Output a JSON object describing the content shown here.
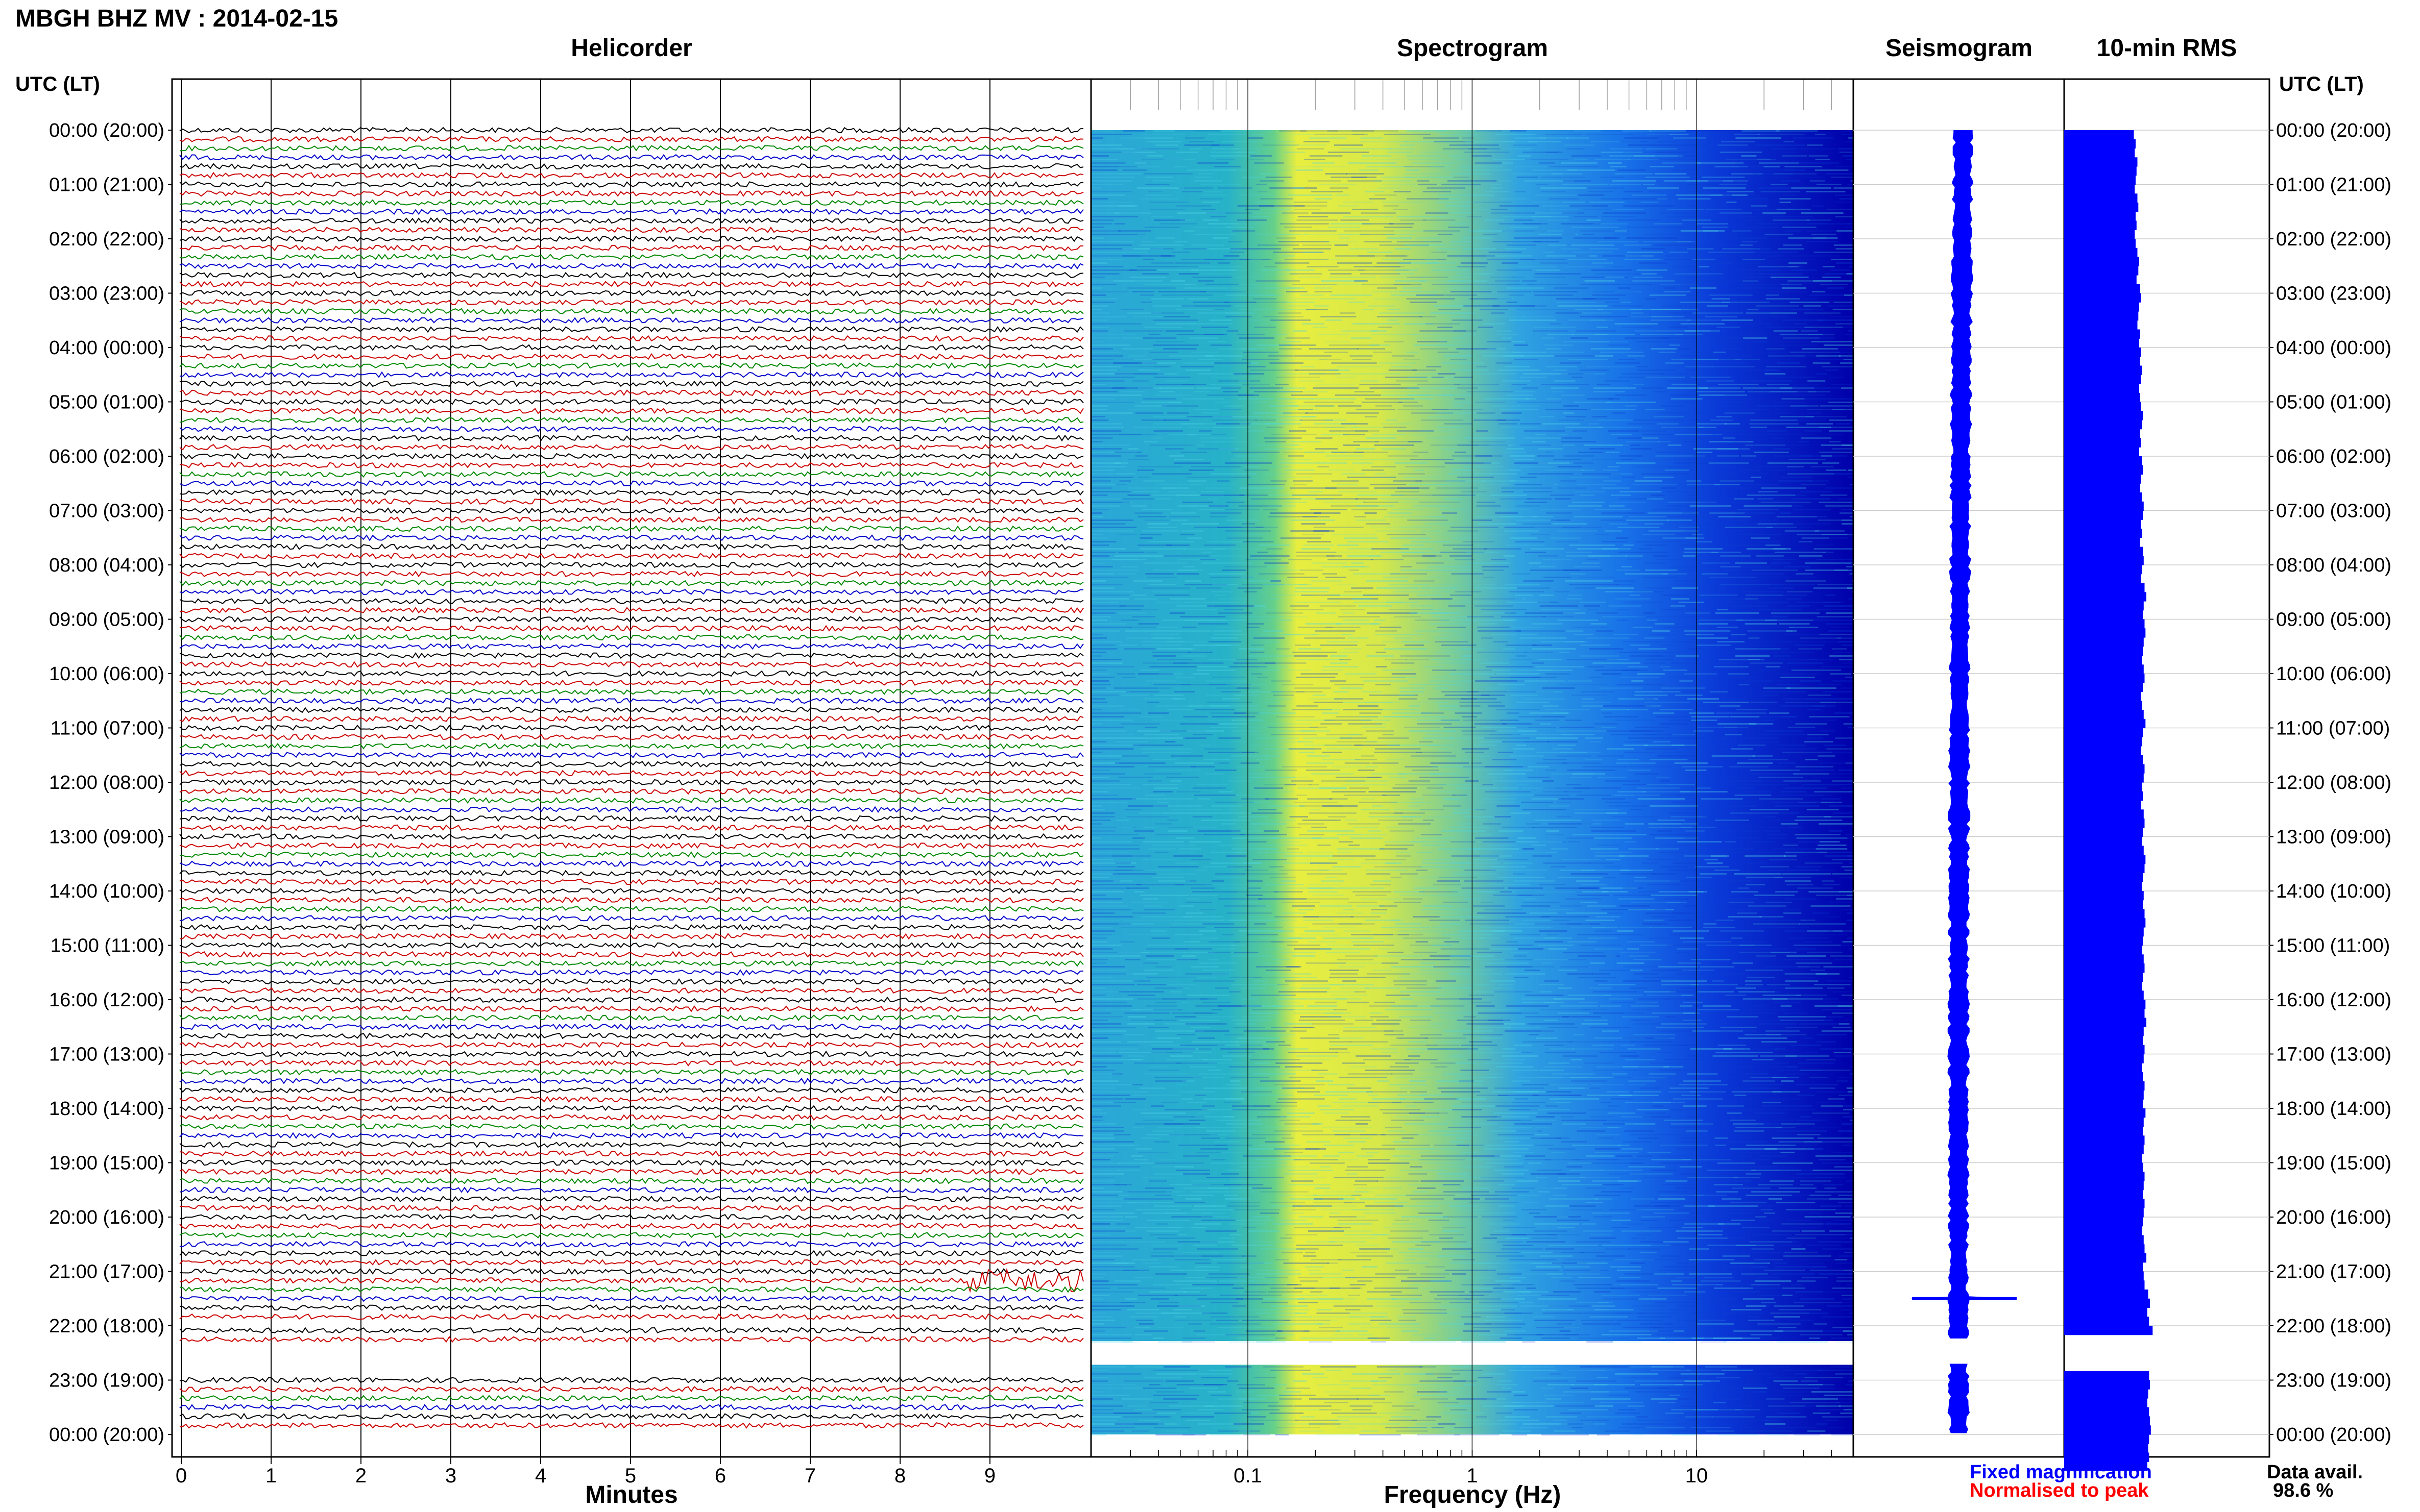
{
  "header": {
    "title": "MBGH BHZ MV : 2014-02-15",
    "left_axis_label": "UTC (LT)",
    "right_axis_label": "UTC (LT)"
  },
  "panels": {
    "helicorder": "Helicorder",
    "spectrogram": "Spectrogram",
    "seismogram": "Seismogram",
    "rms": "10-min RMS"
  },
  "legend": {
    "fixed": "Fixed magnification",
    "normalised": "Normalised to peak",
    "fixed_color": "#0000ff",
    "normalised_color": "#ff0000",
    "avail_label": "Data avail.",
    "avail_value": "98.6 %"
  },
  "colors": {
    "trace_cycle": [
      "#000000",
      "#cc0000",
      "#008800",
      "#0000cc"
    ],
    "spectrogram_low": "#2aa6d8",
    "spectrogram_mid": "#e8ee40",
    "spectrogram_high": "#0000aa",
    "rms_fill": "#0000ff"
  },
  "chart_data": [
    {
      "type": "line",
      "name": "helicorder",
      "title": "Helicorder",
      "xlabel": "Minutes",
      "x_ticks": [
        "0",
        "1",
        "2",
        "3",
        "4",
        "5",
        "6",
        "7",
        "8",
        "9"
      ],
      "xlim": [
        0,
        10
      ],
      "traces_per_hour": 6,
      "trace_minutes": 10,
      "gap_hours": [
        22
      ],
      "event": {
        "hour": 21,
        "trace": 1,
        "start_min": 8.7,
        "end_min": 10
      }
    },
    {
      "type": "heatmap",
      "name": "spectrogram",
      "title": "Spectrogram",
      "xlabel": "Frequency (Hz)",
      "x_scale": "log",
      "xlim": [
        0.02,
        50
      ],
      "x_ticks": [
        "0.1",
        "1",
        "10"
      ],
      "x_tick_values": [
        0.1,
        1,
        10
      ],
      "peak_band_hz": [
        0.2,
        0.5
      ],
      "gap_hours": [
        22
      ]
    },
    {
      "type": "line",
      "name": "seismogram",
      "title": "Seismogram",
      "event_hour": 21.5
    },
    {
      "type": "bar",
      "name": "rms",
      "title": "10-min RMS",
      "values_relative": [
        0.78,
        0.8,
        0.79,
        0.82,
        0.81,
        0.8,
        0.79,
        0.82,
        0.83,
        0.8,
        0.81,
        0.79,
        0.8,
        0.82,
        0.84,
        0.83,
        0.81,
        0.85,
        0.86,
        0.84,
        0.83,
        0.82,
        0.85,
        0.84,
        0.86,
        0.85,
        0.87,
        0.86,
        0.84,
        0.85,
        0.86,
        0.88,
        0.87,
        0.85,
        0.86,
        0.84,
        0.87,
        0.88,
        0.86,
        0.85,
        0.87,
        0.89,
        0.88,
        0.86,
        0.87,
        0.85,
        0.88,
        0.89,
        0.87,
        0.86,
        0.9,
        0.92,
        0.89,
        0.88,
        0.9,
        0.91,
        0.89,
        0.88,
        0.87,
        0.89,
        0.9,
        0.88,
        0.86,
        0.87,
        0.89,
        0.91,
        0.88,
        0.87,
        0.86,
        0.88,
        0.9,
        0.89,
        0.87,
        0.88,
        0.86,
        0.89,
        0.9,
        0.88,
        0.87,
        0.89,
        0.91,
        0.9,
        0.88,
        0.87,
        0.89,
        0.88,
        0.9,
        0.91,
        0.89,
        0.88,
        0.87,
        0.89,
        0.9,
        0.88,
        0.87,
        0.89,
        0.91,
        0.9,
        0.92,
        0.89,
        0.88,
        0.9,
        0.89,
        0.87,
        0.88,
        0.9,
        0.89,
        0.88,
        0.91,
        0.89,
        0.88,
        0.9,
        0.89,
        0.87,
        0.88,
        0.9,
        0.89,
        0.88,
        0.9,
        0.89,
        0.88,
        0.87,
        0.89,
        0.9,
        0.92,
        0.88,
        0.89,
        0.9,
        0.94,
        0.96,
        0.93,
        0.95,
        0.99,
        0.97,
        0.95,
        0.96,
        0.94,
        0.95,
        0.96,
        0.94,
        0.93,
        0.95,
        0.96,
        0.97,
        0.95,
        0.94,
        0.95,
        0.93
      ],
      "gap_hours": [
        22
      ]
    }
  ],
  "time_labels": [
    "00:00 (20:00)",
    "01:00 (21:00)",
    "02:00 (22:00)",
    "03:00 (23:00)",
    "04:00 (00:00)",
    "05:00 (01:00)",
    "06:00 (02:00)",
    "07:00 (03:00)",
    "08:00 (04:00)",
    "09:00 (05:00)",
    "10:00 (06:00)",
    "11:00 (07:00)",
    "12:00 (08:00)",
    "13:00 (09:00)",
    "14:00 (10:00)",
    "15:00 (11:00)",
    "16:00 (12:00)",
    "17:00 (13:00)",
    "18:00 (14:00)",
    "19:00 (15:00)",
    "20:00 (16:00)",
    "21:00 (17:00)",
    "22:00 (18:00)",
    "23:00 (19:00)",
    "00:00 (20:00)"
  ]
}
